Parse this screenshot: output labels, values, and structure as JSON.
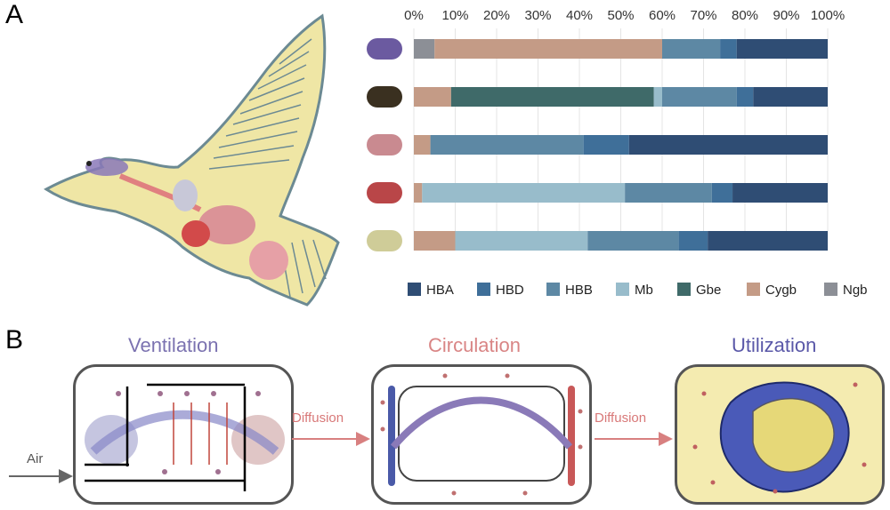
{
  "panels": {
    "a": "A",
    "b": "B"
  },
  "chart_data": {
    "type": "bar",
    "orientation": "horizontal",
    "stacked": true,
    "x_ticks": [
      "0%",
      "10%",
      "20%",
      "30%",
      "40%",
      "50%",
      "60%",
      "70%",
      "80%",
      "90%",
      "100%"
    ],
    "xlim": [
      0,
      100
    ],
    "grid": true,
    "legend_position": "bottom",
    "row_markers": [
      "#6b5aa0",
      "#3a3020",
      "#c98a90",
      "#b94648",
      "#cfcc98"
    ],
    "series": [
      {
        "name": "Ngb",
        "color": "#8c8f96",
        "values": [
          5,
          0,
          0,
          0,
          0
        ]
      },
      {
        "name": "Cygb",
        "color": "#c49b86",
        "values": [
          55,
          9,
          4,
          2,
          10
        ]
      },
      {
        "name": "Gbe",
        "color": "#3f6a69",
        "values": [
          0,
          49,
          0,
          0,
          0
        ]
      },
      {
        "name": "Mb",
        "color": "#98bccb",
        "values": [
          0,
          2,
          0,
          49,
          32
        ]
      },
      {
        "name": "HBB",
        "color": "#5d88a4",
        "values": [
          14,
          18,
          37,
          21,
          22
        ]
      },
      {
        "name": "HBD",
        "color": "#3f6f99",
        "values": [
          4,
          4,
          11,
          5,
          7
        ]
      },
      {
        "name": "HBA",
        "color": "#2f4d74",
        "values": [
          22,
          18,
          48,
          23,
          29
        ]
      }
    ],
    "legend_order": [
      "HBA",
      "HBD",
      "HBB",
      "Mb",
      "Gbe",
      "Cygb",
      "Ngb"
    ]
  },
  "diagram": {
    "ventilation_title": "Ventilation",
    "circulation_title": "Circulation",
    "utilization_title": "Utilization",
    "diffusion_label_1": "Diffusion",
    "diffusion_label_2": "Diffusion",
    "air_label": "Air"
  }
}
